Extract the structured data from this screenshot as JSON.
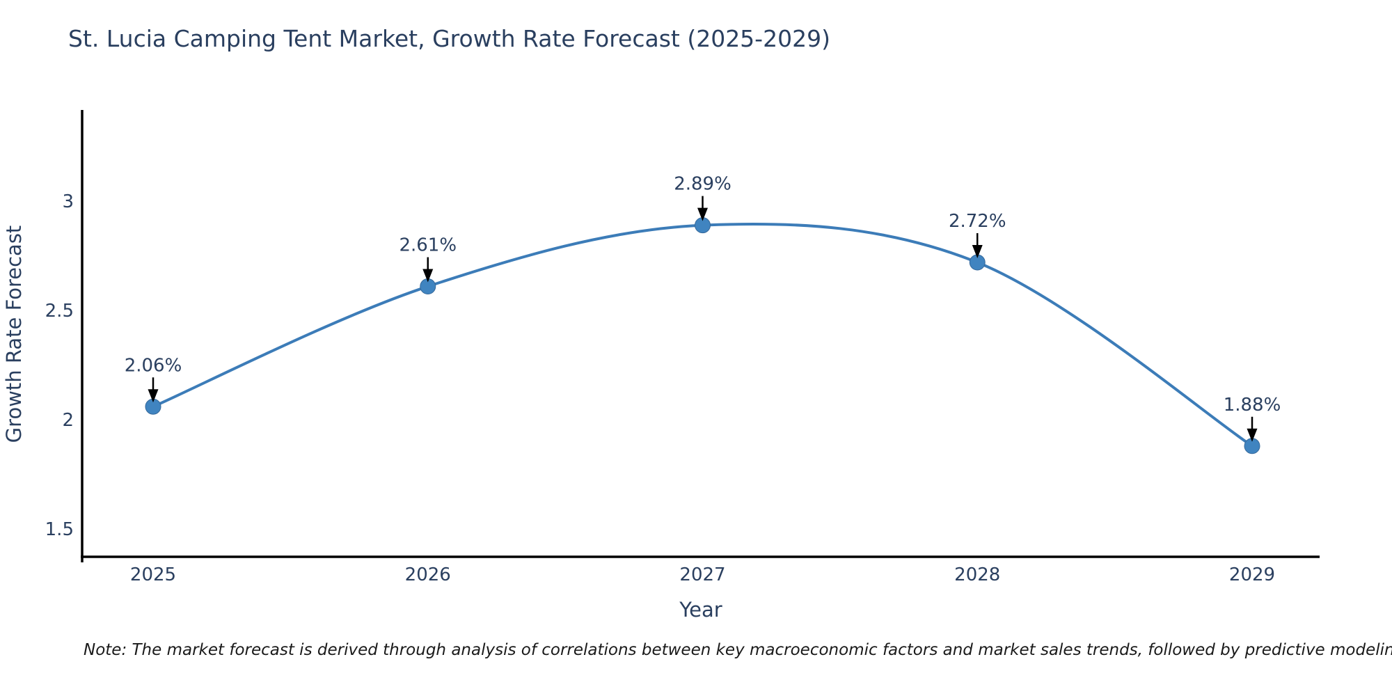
{
  "note": "Note: The market forecast is derived through analysis of correlations between key macroeconomic factors and market sales trends, followed by predictive modeling to project future sales",
  "chart_data": {
    "type": "line",
    "title": "St. Lucia Camping Tent Market, Growth Rate Forecast (2025-2029)",
    "xlabel": "Year",
    "ylabel": "Growth Rate Forecast",
    "x": [
      2025,
      2026,
      2027,
      2028,
      2029
    ],
    "series": [
      {
        "name": "Growth Rate Forecast",
        "values": [
          2.06,
          2.61,
          2.89,
          2.72,
          1.88
        ]
      }
    ],
    "point_labels": [
      "2.06%",
      "2.61%",
      "2.89%",
      "2.72%",
      "1.88%"
    ],
    "yticks": [
      1.5,
      2,
      2.5,
      3
    ],
    "ytick_labels": [
      "1.5",
      "2",
      "2.5",
      "3"
    ],
    "ylim": [
      1.373,
      3.411
    ],
    "grid": false,
    "legend_position": "none",
    "line_shape": "spline",
    "annotation_arrows": true,
    "colors": {
      "line": "#3c7cb8",
      "marker": "#4084c0",
      "marker_edge": "#35689a",
      "axis": "#000000",
      "text": "#2a3f5f",
      "arrow": "#000000"
    }
  }
}
